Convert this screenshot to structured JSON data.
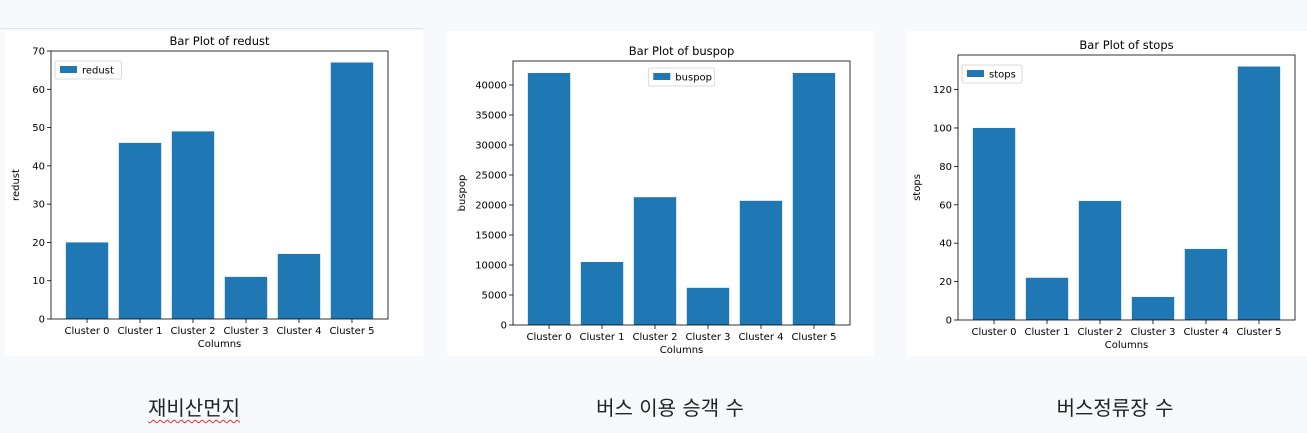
{
  "chart_data": [
    {
      "type": "bar",
      "title": "Bar Plot of redust",
      "xlabel": "Columns",
      "ylabel": "redust",
      "categories": [
        "Cluster 0",
        "Cluster 1",
        "Cluster 2",
        "Cluster 3",
        "Cluster 4",
        "Cluster 5"
      ],
      "series": [
        {
          "name": "redust",
          "values": [
            20,
            46,
            49,
            11,
            17,
            67
          ]
        }
      ],
      "ylim": [
        0,
        70
      ],
      "yticks": [
        0,
        10,
        20,
        30,
        40,
        50,
        60,
        70
      ],
      "legend": "top-left",
      "grid": false,
      "color": "#1f77b4"
    },
    {
      "type": "bar",
      "title": "Bar Plot of buspop",
      "xlabel": "Columns",
      "ylabel": "buspop",
      "categories": [
        "Cluster 0",
        "Cluster 1",
        "Cluster 2",
        "Cluster 3",
        "Cluster 4",
        "Cluster 5"
      ],
      "series": [
        {
          "name": "buspop",
          "values": [
            42000,
            10500,
            21300,
            6200,
            20700,
            42000
          ]
        }
      ],
      "ylim": [
        0,
        44000
      ],
      "yticks": [
        0,
        5000,
        10000,
        15000,
        20000,
        25000,
        30000,
        35000,
        40000
      ],
      "legend": "top-center",
      "grid": false,
      "color": "#1f77b4"
    },
    {
      "type": "bar",
      "title": "Bar Plot of stops",
      "xlabel": "Columns",
      "ylabel": "stops",
      "categories": [
        "Cluster 0",
        "Cluster 1",
        "Cluster 2",
        "Cluster 3",
        "Cluster 4",
        "Cluster 5"
      ],
      "series": [
        {
          "name": "stops",
          "values": [
            100,
            22,
            62,
            12,
            37,
            132
          ]
        }
      ],
      "ylim": [
        0,
        138
      ],
      "yticks": [
        0,
        20,
        40,
        60,
        80,
        100,
        120
      ],
      "legend": "top-left",
      "grid": false,
      "color": "#1f77b4"
    }
  ],
  "captions": [
    "재비산먼지",
    "버스 이용 승객 수",
    "버스정류장 수"
  ]
}
